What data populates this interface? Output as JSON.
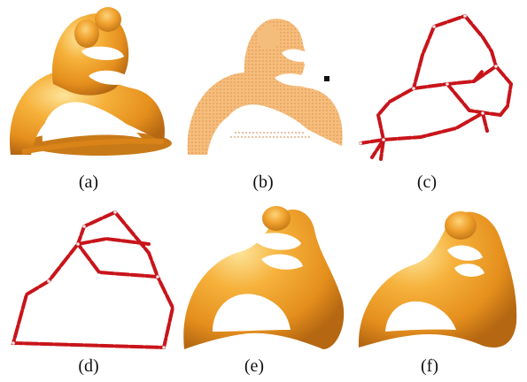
{
  "colors": {
    "surface": "#f2a12a",
    "surface_light": "#fbd06a",
    "surface_dark": "#c0741a",
    "points": "#f3b26b",
    "skeleton_edge": "#c8141a",
    "skeleton_node": "#e9e9e9"
  },
  "panels": [
    {
      "id": "a",
      "caption": "(a)"
    },
    {
      "id": "b",
      "caption": "(b)"
    },
    {
      "id": "c",
      "caption": "(c)"
    },
    {
      "id": "d",
      "caption": "(d)"
    },
    {
      "id": "e",
      "caption": "(e)"
    },
    {
      "id": "f",
      "caption": "(f)"
    }
  ]
}
